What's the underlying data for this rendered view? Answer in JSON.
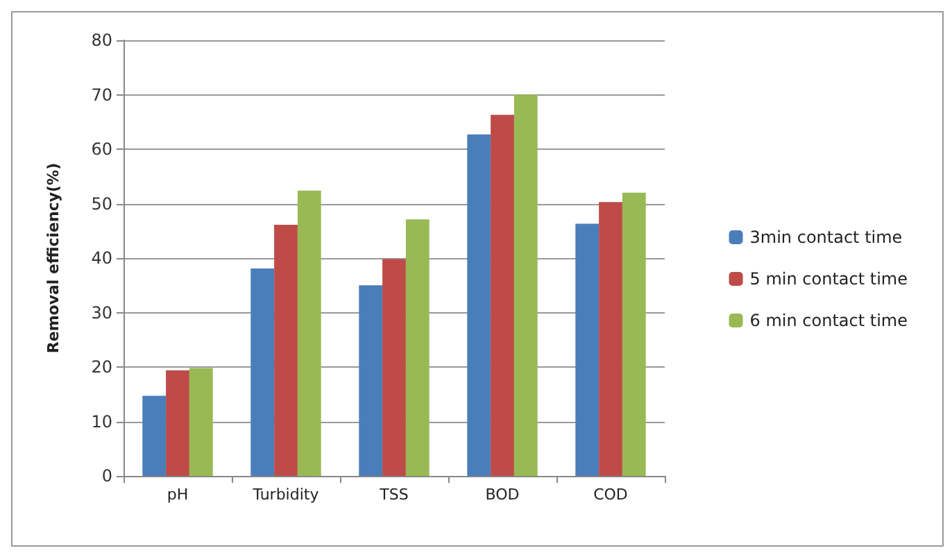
{
  "chart_data": {
    "type": "bar",
    "ylabel": "Removal efficiency(%)",
    "categories": [
      "pH",
      "Turbidity",
      "TSS",
      "BOD",
      "COD"
    ],
    "series": [
      {
        "name": "3min contact time",
        "color": "#4a7ebb",
        "values": [
          14.7,
          38.1,
          35,
          62.7,
          46.3
        ]
      },
      {
        "name": "5 min contact time",
        "color": "#be4b48",
        "values": [
          19.4,
          46.1,
          39.8,
          66.3,
          50.3
        ]
      },
      {
        "name": "6 min contact time",
        "color": "#98b954",
        "values": [
          19.8,
          52.4,
          47.1,
          70,
          52
        ]
      }
    ],
    "ylim": [
      0,
      80
    ],
    "yticks": [
      0,
      10,
      20,
      30,
      40,
      50,
      60,
      70,
      80
    ],
    "grid": "y",
    "legend": "right"
  }
}
